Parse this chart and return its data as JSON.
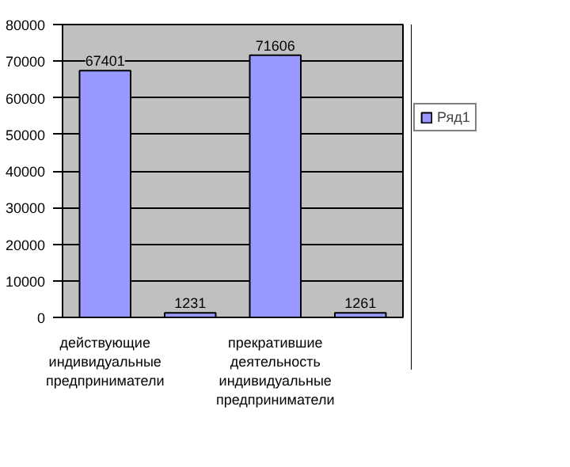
{
  "chart_data": {
    "type": "bar",
    "categories": [
      "действующие индивидуальные предприниматели",
      null,
      "прекратившие деятельность индивидуальные предприниматели",
      null
    ],
    "series": [
      {
        "name": "Ряд1",
        "color": "#9999ff",
        "values": [
          67401,
          1231,
          71606,
          1261
        ]
      }
    ],
    "ylim": [
      0,
      80000
    ],
    "yticks": [
      0,
      10000,
      20000,
      30000,
      40000,
      50000,
      60000,
      70000,
      80000
    ],
    "grid": "y",
    "legend": "right",
    "data_labels": true
  }
}
